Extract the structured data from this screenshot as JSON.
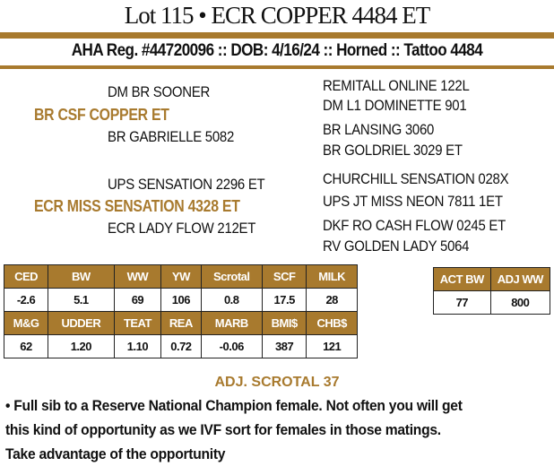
{
  "title": "Lot 115 • ECR COPPER 4484 ET",
  "registration": "AHA Reg. #44720096 :: DOB: 4/16/24 :: Horned :: Tattoo 4484",
  "pedigree": {
    "sire": "BR CSF COPPER ET",
    "sire_sire": "DM BR SOONER",
    "sire_dam": "BR GABRIELLE 5082",
    "sire_sire_sire": "REMITALL ONLINE 122L",
    "sire_sire_dam": "DM L1 DOMINETTE 901",
    "sire_dam_sire": "BR LANSING 3060",
    "sire_dam_dam": "BR GOLDRIEL 3029 ET",
    "dam": "ECR MISS SENSATION 4328 ET",
    "dam_sire": "UPS SENSATION 2296 ET",
    "dam_dam": "ECR LADY FLOW 212ET",
    "dam_sire_sire": "CHURCHILL SENSATION 028X",
    "dam_sire_dam": "UPS JT MISS NEON 7811 1ET",
    "dam_dam_sire": "DKF RO CASH FLOW 0245 ET",
    "dam_dam_dam": "RV GOLDEN LADY 5064"
  },
  "epds": {
    "row1_headers": [
      "CED",
      "BW",
      "WW",
      "YW",
      "Scrotal",
      "SCF",
      "MILK"
    ],
    "row1_values": [
      "-2.6",
      "5.1",
      "69",
      "106",
      "0.8",
      "17.5",
      "28"
    ],
    "row2_headers": [
      "M&G",
      "UDDER",
      "TEAT",
      "REA",
      "MARB",
      "BMI$",
      "CHB$"
    ],
    "row2_values": [
      "62",
      "1.20",
      "1.10",
      "0.72",
      "-0.06",
      "387",
      "121"
    ]
  },
  "actuals": {
    "headers": [
      "ACT BW",
      "ADJ WW"
    ],
    "values": [
      "77",
      "800"
    ]
  },
  "adj_scrotal": "ADJ. SCROTAL 37",
  "notes": [
    "• Full sib to a Reserve National Champion female. Not often you will get",
    "this kind of opportunity as we IVF sort for females in those matings.",
    "Take advantage of the opportunity"
  ],
  "colors": {
    "accent": "#a87a2e"
  }
}
